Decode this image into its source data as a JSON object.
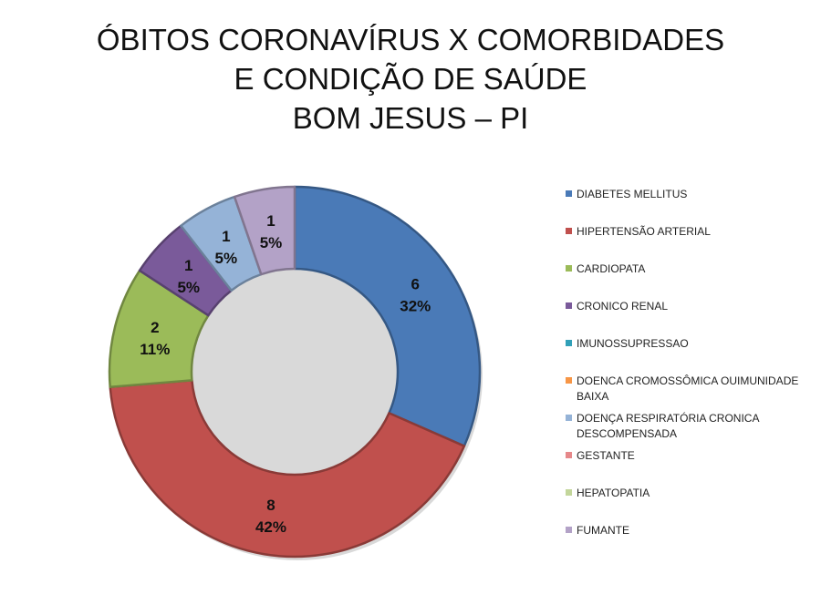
{
  "chart_data": {
    "type": "pie",
    "title": [
      "ÓBITOS CORONAVÍRUS X COMORBIDADES",
      "E CONDIÇÃO DE SAÚDE",
      "BOM JESUS – PI"
    ],
    "legend_position": "right",
    "series": [
      {
        "name": "DIABETES MELLITUS",
        "value": 6,
        "label_count": "6",
        "label_percent": "32%",
        "color": "#4a7ab7"
      },
      {
        "name": "HIPERTENSÃO ARTERIAL",
        "value": 8,
        "label_count": "8",
        "label_percent": "42%",
        "color": "#c0504d"
      },
      {
        "name": "CARDIOPATA",
        "value": 2,
        "label_count": "2",
        "label_percent": "11%",
        "color": "#9bbb59"
      },
      {
        "name": "CRONICO RENAL",
        "value": 1,
        "label_count": "1",
        "label_percent": "5%",
        "color": "#7a5a9a"
      },
      {
        "name": "IMUNOSSUPRESSAO",
        "value": 0,
        "label_count": "",
        "label_percent": "",
        "color": "#31a0b8"
      },
      {
        "name": "DOENCA CROMOSSÔMICA OUIMUNIDADE BAIXA",
        "value": 0,
        "label_count": "",
        "label_percent": "",
        "color": "#f79646"
      },
      {
        "name": "DOENÇA RESPIRATÓRIA CRONICA DESCOMPENSADA",
        "value": 1,
        "label_count": "1",
        "label_percent": "5%",
        "color": "#95b3d7"
      },
      {
        "name": "GESTANTE",
        "value": 0,
        "label_count": "",
        "label_percent": "",
        "color": "#e6888a"
      },
      {
        "name": "HEPATOPATIA",
        "value": 0,
        "label_count": "",
        "label_percent": "",
        "color": "#c3d69b"
      },
      {
        "name": "FUMANTE",
        "value": 1,
        "label_count": "1",
        "label_percent": "5%",
        "color": "#b3a2c7"
      }
    ]
  }
}
